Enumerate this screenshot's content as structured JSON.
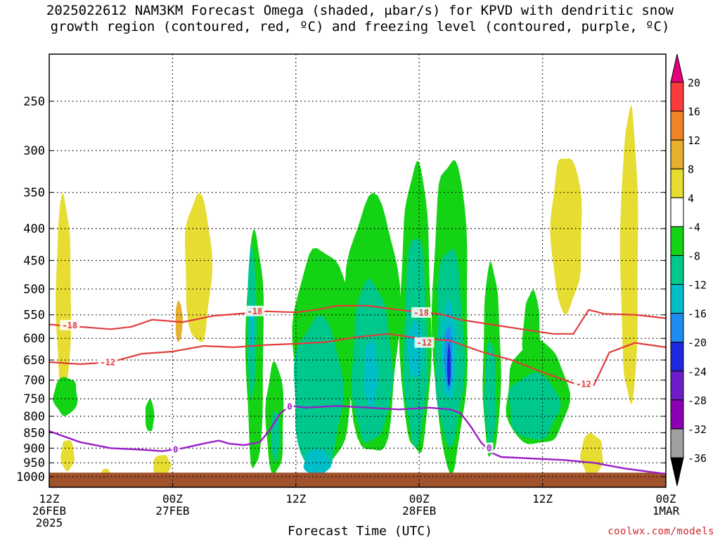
{
  "title_line1": "2025022612 NAM3KM Forecast Omega (shaded, μbar/s) for KPVD with dendritic snow",
  "title_line2": "growth region (contoured, red, ºC) and freezing level (contoured, purple, ºC)",
  "credit": "coolwx.com/models",
  "chart_data": {
    "type": "heatmap",
    "title": "2025022612 NAM3KM Forecast Omega (shaded, μbar/s) for KPVD with dendritic snow growth region (contoured, red, ºC) and freezing level (contoured, purple, ºC)",
    "xlabel": "Forecast Time (UTC)",
    "ylabel": "",
    "x_range_hours": [
      0,
      60
    ],
    "x_ticks": [
      {
        "hour": 0,
        "label": [
          "12Z",
          "26FEB",
          "2025"
        ]
      },
      {
        "hour": 12,
        "label": [
          "00Z",
          "27FEB"
        ]
      },
      {
        "hour": 24,
        "label": [
          "12Z"
        ]
      },
      {
        "hour": 36,
        "label": [
          "00Z",
          "28FEB"
        ]
      },
      {
        "hour": 48,
        "label": [
          "12Z"
        ]
      },
      {
        "hour": 60,
        "label": [
          "00Z",
          "1MAR"
        ]
      }
    ],
    "y_scale": "log-pressure",
    "y_range_mb": [
      1000,
      200
    ],
    "y_ticks": [
      250,
      300,
      350,
      400,
      450,
      500,
      550,
      600,
      650,
      700,
      750,
      800,
      850,
      900,
      950,
      1000
    ],
    "grid": true,
    "colorbar": {
      "levels": [
        -36,
        -32,
        -28,
        -24,
        -20,
        -16,
        -12,
        -8,
        -4,
        4,
        8,
        12,
        16,
        20
      ],
      "label_values": [
        20,
        16,
        12,
        8,
        4,
        -4,
        -8,
        -12,
        -16,
        -20,
        -24,
        -28,
        -32,
        -36
      ],
      "colors": [
        "#ffffff",
        "#a0a0a0",
        "#8c00b4",
        "#6e1ec8",
        "#1e28dc",
        "#1e8cf0",
        "#00bec8",
        "#00c88c",
        "#14d214",
        "#ffffff",
        "#e6dc32",
        "#e6af2d",
        "#f08228",
        "#fa3c3c",
        "#e6007d"
      ]
    },
    "omega_regions": [
      {
        "level": 4,
        "hour": [
          0.5,
          2.2
        ],
        "p": [
          750,
          350
        ]
      },
      {
        "level": 4,
        "hour": [
          13.0,
          16.0
        ],
        "p": [
          620,
          350
        ]
      },
      {
        "level": 8,
        "hour": [
          12.2,
          13.0
        ],
        "p": [
          610,
          520
        ]
      },
      {
        "level": 4,
        "hour": [
          55.5,
          57.5
        ],
        "p": [
          780,
          250
        ]
      },
      {
        "level": 4,
        "hour": [
          48.5,
          52.0
        ],
        "p": [
          550,
          300
        ]
      },
      {
        "level": 4,
        "hour": [
          1.0,
          2.5
        ],
        "p": [
          980,
          870
        ]
      },
      {
        "level": 4,
        "hour": [
          5.0,
          6.0
        ],
        "p": [
          1000,
          970
        ]
      },
      {
        "level": 4,
        "hour": [
          10.0,
          12.0
        ],
        "p": [
          1000,
          920
        ]
      },
      {
        "level": 4,
        "hour": [
          51.5,
          54.0
        ],
        "p": [
          1000,
          850
        ]
      },
      {
        "level": -4,
        "hour": [
          0.3,
          3.0
        ],
        "p": [
          800,
          690
        ]
      },
      {
        "level": -4,
        "hour": [
          9.3,
          10.3
        ],
        "p": [
          850,
          750
        ]
      },
      {
        "level": -4,
        "hour": [
          19.0,
          21.0
        ],
        "p": [
          1000,
          400
        ]
      },
      {
        "level": -8,
        "hour": [
          19.2,
          20.2
        ],
        "p": [
          760,
          420
        ]
      },
      {
        "level": -12,
        "hour": [
          19.4,
          19.9
        ],
        "p": [
          640,
          520
        ]
      },
      {
        "level": -4,
        "hour": [
          21.0,
          23.0
        ],
        "p": [
          1000,
          650
        ]
      },
      {
        "level": -8,
        "hour": [
          21.5,
          22.5
        ],
        "p": [
          950,
          780
        ]
      },
      {
        "level": -4,
        "hour": [
          23.0,
          30.0
        ],
        "p": [
          1000,
          420
        ]
      },
      {
        "level": -8,
        "hour": [
          23.5,
          29.0
        ],
        "p": [
          1000,
          550
        ]
      },
      {
        "level": -12,
        "hour": [
          24.5,
          27.5
        ],
        "p": [
          1000,
          900
        ]
      },
      {
        "level": -4,
        "hour": [
          28.5,
          34.5
        ],
        "p": [
          950,
          350
        ]
      },
      {
        "level": -8,
        "hour": [
          29.0,
          33.5
        ],
        "p": [
          900,
          480
        ]
      },
      {
        "level": -12,
        "hour": [
          30.5,
          32.0
        ],
        "p": [
          780,
          600
        ]
      },
      {
        "level": -4,
        "hour": [
          34.0,
          37.5
        ],
        "p": [
          950,
          310
        ]
      },
      {
        "level": -8,
        "hour": [
          34.3,
          37.0
        ],
        "p": [
          900,
          400
        ]
      },
      {
        "level": -12,
        "hour": [
          34.8,
          36.5
        ],
        "p": [
          700,
          560
        ]
      },
      {
        "level": -4,
        "hour": [
          37.0,
          41.0
        ],
        "p": [
          1000,
          300
        ]
      },
      {
        "level": -8,
        "hour": [
          37.3,
          40.5
        ],
        "p": [
          900,
          420
        ]
      },
      {
        "level": -12,
        "hour": [
          38.0,
          39.7
        ],
        "p": [
          760,
          520
        ]
      },
      {
        "level": -16,
        "hour": [
          38.4,
          39.3
        ],
        "p": [
          730,
          570
        ]
      },
      {
        "level": -20,
        "hour": [
          38.7,
          39.1
        ],
        "p": [
          720,
          610
        ]
      },
      {
        "level": -4,
        "hour": [
          42.0,
          44.0
        ],
        "p": [
          950,
          450
        ]
      },
      {
        "level": -8,
        "hour": [
          42.3,
          43.6
        ],
        "p": [
          900,
          600
        ]
      },
      {
        "level": -4,
        "hour": [
          44.0,
          51.0
        ],
        "p": [
          900,
          600
        ]
      },
      {
        "level": -8,
        "hour": [
          44.3,
          50.0
        ],
        "p": [
          880,
          680
        ]
      },
      {
        "level": -4,
        "hour": [
          46.0,
          48.0
        ],
        "p": [
          720,
          500
        ]
      }
    ],
    "dgz_contours": [
      {
        "label": "-18",
        "hours": [
          0,
          3,
          6,
          8,
          10,
          13,
          16,
          19,
          21,
          24,
          26,
          28,
          31,
          34,
          36,
          38,
          40,
          43,
          46,
          49,
          51,
          52.5,
          54,
          57,
          60
        ],
        "p": [
          570,
          575,
          580,
          575,
          560,
          565,
          552,
          547,
          543,
          545,
          540,
          532,
          532,
          540,
          545,
          548,
          560,
          570,
          580,
          590,
          590,
          540,
          548,
          550,
          557
        ]
      },
      {
        "label": "-12",
        "hours": [
          0,
          3,
          6,
          9,
          12,
          15,
          18,
          21,
          24,
          27,
          30,
          33,
          36,
          39,
          42,
          45,
          48,
          51,
          53,
          54.5,
          57,
          60
        ],
        "p": [
          655,
          660,
          655,
          635,
          630,
          617,
          620,
          615,
          612,
          608,
          597,
          590,
          600,
          605,
          630,
          650,
          680,
          708,
          713,
          632,
          610,
          620
        ]
      }
    ],
    "freezing_level_contour": {
      "label": "0",
      "hours": [
        0,
        3,
        6,
        9,
        11,
        13,
        15,
        16.5,
        17.5,
        19,
        20.5,
        21.5,
        22.5,
        23.5,
        25,
        28,
        31,
        34,
        37,
        39,
        40,
        41,
        42,
        43,
        44,
        47,
        50,
        53,
        56,
        60
      ],
      "p": [
        845,
        880,
        900,
        905,
        910,
        900,
        885,
        875,
        885,
        890,
        880,
        840,
        790,
        770,
        775,
        770,
        775,
        780,
        775,
        780,
        790,
        830,
        880,
        915,
        930,
        935,
        940,
        950,
        970,
        990
      ]
    },
    "contour_labels": [
      {
        "text": "-18",
        "hour": 2.0,
        "p": 572,
        "color": "#e23c3c"
      },
      {
        "text": "-18",
        "hour": 20.0,
        "p": 543,
        "color": "#e23c3c"
      },
      {
        "text": "-18",
        "hour": 36.2,
        "p": 546,
        "color": "#e23c3c"
      },
      {
        "text": "-12",
        "hour": 5.7,
        "p": 656,
        "color": "#e23c3c"
      },
      {
        "text": "-12",
        "hour": 36.5,
        "p": 610,
        "color": "#e23c3c"
      },
      {
        "text": "-12",
        "hour": 52.0,
        "p": 711,
        "color": "#e23c3c"
      },
      {
        "text": "0",
        "hour": 12.3,
        "p": 905,
        "color": "#9a1ec8"
      },
      {
        "text": "0",
        "hour": 23.4,
        "p": 772,
        "color": "#9a1ec8"
      },
      {
        "text": "0",
        "hour": 42.8,
        "p": 900,
        "color": "#9a1ec8"
      }
    ],
    "surface_p_mb": 985
  }
}
